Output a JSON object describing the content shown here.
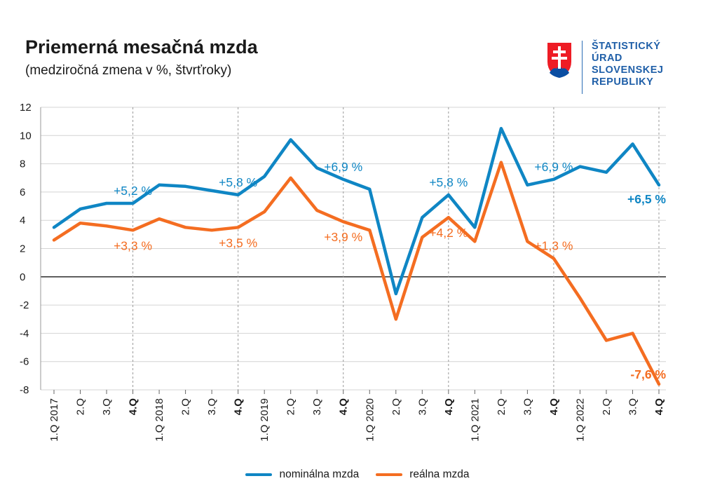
{
  "header": {
    "title": "Priemerná mesačná mzda",
    "subtitle": "(medziročná zmena v %, štvrťroky)"
  },
  "logo": {
    "line1": "ŠTATISTICKÝ",
    "line2": "ÚRAD",
    "line3": "SLOVENSKEJ",
    "line4": "REPUBLIKY"
  },
  "colors": {
    "nominal": "#0f86c4",
    "real": "#f46d21",
    "grid": "#d4d4d4",
    "zero": "#1a1a1a",
    "dashed": "#9a9a9a"
  },
  "chart_data": {
    "type": "line",
    "title": "Priemerná mesačná mzda",
    "subtitle": "(medziročná zmena v %, štvrťroky)",
    "ylim": [
      -8,
      12
    ],
    "yticks": [
      -8,
      -6,
      -4,
      -2,
      0,
      2,
      4,
      6,
      8,
      10,
      12
    ],
    "grid": true,
    "legend_position": "bottom-center",
    "categories": [
      "1.Q 2017",
      "2.Q",
      "3.Q",
      "4.Q",
      "1.Q 2018",
      "2.Q",
      "3.Q",
      "4.Q",
      "1.Q 2019",
      "2.Q",
      "3.Q",
      "4.Q",
      "1.Q 2020",
      "2.Q",
      "3.Q",
      "4.Q",
      "1.Q 2021",
      "2.Q",
      "3.Q",
      "4.Q",
      "1.Q 2022",
      "2.Q",
      "3.Q",
      "4.Q"
    ],
    "bold_categories": [
      3,
      7,
      11,
      15,
      19,
      23
    ],
    "series": [
      {
        "name": "nominálna mzda",
        "color_key": "nominal",
        "values": [
          3.5,
          4.8,
          5.2,
          5.2,
          6.5,
          6.4,
          6.1,
          5.8,
          7.1,
          9.7,
          7.7,
          6.9,
          6.2,
          -1.2,
          4.2,
          5.8,
          3.5,
          10.5,
          6.5,
          6.9,
          7.8,
          7.4,
          9.4,
          6.5
        ]
      },
      {
        "name": "reálna mzda",
        "color_key": "real",
        "values": [
          2.6,
          3.8,
          3.6,
          3.3,
          4.1,
          3.5,
          3.3,
          3.5,
          4.6,
          7.0,
          4.7,
          3.9,
          3.3,
          -3.0,
          2.8,
          4.2,
          2.5,
          8.1,
          2.5,
          1.3,
          -1.5,
          -4.5,
          -4.0,
          -7.6
        ]
      }
    ],
    "annotations": [
      {
        "series": 0,
        "index": 3,
        "text": "+5,2 %",
        "bold": false,
        "pos": "above"
      },
      {
        "series": 0,
        "index": 7,
        "text": "+5,8 %",
        "bold": false,
        "pos": "above"
      },
      {
        "series": 0,
        "index": 11,
        "text": "+6,9 %",
        "bold": false,
        "pos": "above"
      },
      {
        "series": 0,
        "index": 15,
        "text": "+5,8 %",
        "bold": false,
        "pos": "above"
      },
      {
        "series": 0,
        "index": 19,
        "text": "+6,9 %",
        "bold": false,
        "pos": "above"
      },
      {
        "series": 0,
        "index": 23,
        "text": "+6,5 %",
        "bold": true,
        "pos": "below"
      },
      {
        "series": 1,
        "index": 3,
        "text": "+3,3 %",
        "bold": false,
        "pos": "below"
      },
      {
        "series": 1,
        "index": 7,
        "text": "+3,5 %",
        "bold": false,
        "pos": "below"
      },
      {
        "series": 1,
        "index": 11,
        "text": "+3,9 %",
        "bold": false,
        "pos": "below"
      },
      {
        "series": 1,
        "index": 15,
        "text": "+4,2 %",
        "bold": false,
        "pos": "below"
      },
      {
        "series": 1,
        "index": 19,
        "text": "+1,3 %",
        "bold": false,
        "pos": "above"
      },
      {
        "series": 1,
        "index": 23,
        "text": "-7,6 %",
        "bold": true,
        "pos": "above"
      }
    ]
  },
  "legend": {
    "nominal_label": "nominálna mzda",
    "real_label": "reálna mzda"
  }
}
